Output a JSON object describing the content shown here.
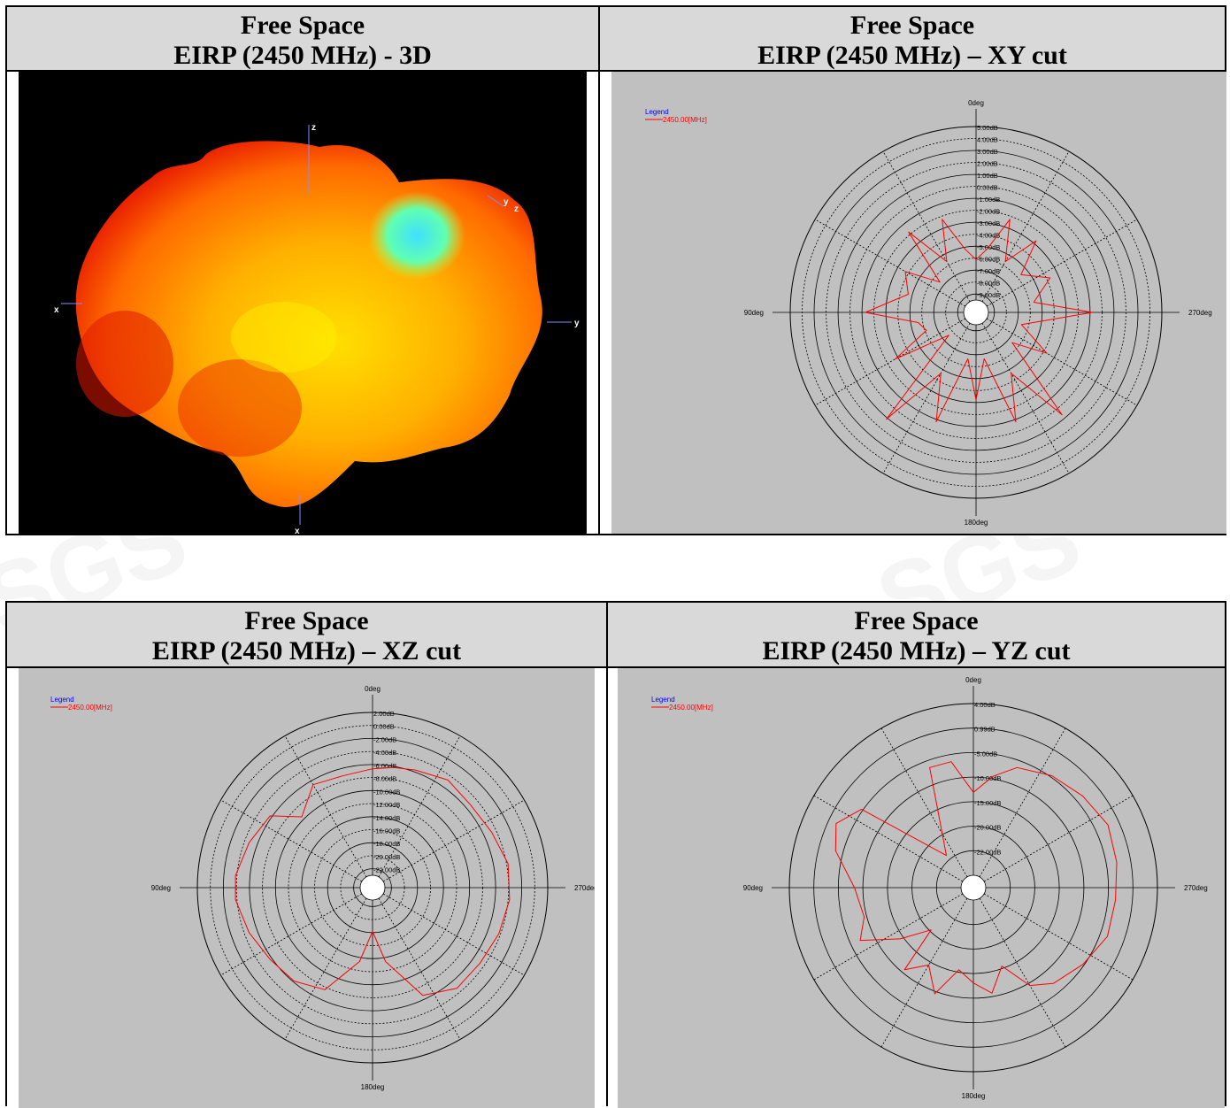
{
  "watermark": "SGS",
  "panels": [
    {
      "id": "3d",
      "title_line1": "Free Space",
      "title_line2": "EIRP (2450 MHz) - 3D",
      "axis_labels": [
        "z",
        "x",
        "y",
        "y",
        "x",
        "z"
      ]
    },
    {
      "id": "xy",
      "title_line1": "Free Space",
      "title_line2": "EIRP (2450 MHz) – XY cut"
    },
    {
      "id": "xz",
      "title_line1": "Free Space",
      "title_line2": "EIRP (2450 MHz) – XZ cut"
    },
    {
      "id": "yz",
      "title_line1": "Free Space",
      "title_line2": "EIRP (2450 MHz) – YZ cut"
    }
  ],
  "legend": {
    "title": "Legend",
    "entry": "2450.00[MHz]"
  },
  "colors": {
    "trace": "#ff0000",
    "legend_title": "#0000ff",
    "plot_bg": "#c0c0c0",
    "header_bg": "#d9d9d9"
  },
  "chart_data": [
    {
      "type": "polar",
      "panel": "xy",
      "angle_labels": {
        "top": "0deg",
        "left": "90deg",
        "bottom": "180deg",
        "right": "270deg"
      },
      "radial_labels": [
        "5.00dB",
        "4.00dB",
        "3.00dB",
        "2.00dB",
        "1.00dB",
        "0.00dB",
        "-1.00dB",
        "-2.00dB",
        "-3.00dB",
        "-4.00dB",
        "-5.00dB",
        "-6.00dB",
        "-7.00dB",
        "-8.00dB",
        "-9.00dB"
      ],
      "r_range_db": [
        -10,
        5
      ],
      "series": [
        {
          "name": "2450.00[MHz]",
          "points": [
            [
              0,
              -6.5
            ],
            [
              10,
              -5.5
            ],
            [
              20,
              -2.5
            ],
            [
              30,
              -6
            ],
            [
              40,
              -2
            ],
            [
              50,
              -7
            ],
            [
              60,
              -4
            ],
            [
              75,
              -5
            ],
            [
              90,
              -1.5
            ],
            [
              100,
              -6
            ],
            [
              110,
              -6.5
            ],
            [
              120,
              -3
            ],
            [
              130,
              -8
            ],
            [
              140,
              1
            ],
            [
              150,
              -5
            ],
            [
              160,
              -1
            ],
            [
              170,
              -7
            ],
            [
              180,
              -3.5
            ],
            [
              190,
              -7
            ],
            [
              200,
              -1
            ],
            [
              210,
              -5
            ],
            [
              220,
              0.5
            ],
            [
              230,
              -7
            ],
            [
              240,
              -4
            ],
            [
              255,
              -7
            ],
            [
              270,
              -1
            ],
            [
              280,
              -6
            ],
            [
              295,
              -4
            ],
            [
              310,
              -6
            ],
            [
              320,
              -3
            ],
            [
              330,
              -6
            ],
            [
              340,
              -2.5
            ],
            [
              350,
              -5.5
            ]
          ]
        }
      ]
    },
    {
      "type": "polar",
      "panel": "xz",
      "angle_labels": {
        "top": "0deg",
        "left": "90deg",
        "bottom": "180deg",
        "right": "270deg"
      },
      "radial_labels": [
        "2.00dB",
        "0.00dB",
        "-2.00dB",
        "-4.00dB",
        "-6.00dB",
        "-8.00dB",
        "-10.00dB",
        "-12.00dB",
        "-14.00dB",
        "-16.00dB",
        "-18.00dB",
        "-20.00dB",
        "-22.00dB"
      ],
      "r_range_db": [
        -24,
        2
      ],
      "series": [
        {
          "name": "2450.00[MHz]",
          "points": [
            [
              0,
              -7
            ],
            [
              15,
              -7.5
            ],
            [
              30,
              -7
            ],
            [
              45,
              -10
            ],
            [
              55,
              -6
            ],
            [
              70,
              -5
            ],
            [
              85,
              -4
            ],
            [
              95,
              -4
            ],
            [
              110,
              -5
            ],
            [
              125,
              -6
            ],
            [
              140,
              -6.5
            ],
            [
              155,
              -8
            ],
            [
              170,
              -14
            ],
            [
              180,
              -19
            ],
            [
              190,
              -14
            ],
            [
              205,
              -7
            ],
            [
              220,
              -5
            ],
            [
              235,
              -5
            ],
            [
              250,
              -4.5
            ],
            [
              265,
              -4
            ],
            [
              280,
              -4
            ],
            [
              295,
              -5
            ],
            [
              310,
              -5.5
            ],
            [
              325,
              -5
            ],
            [
              340,
              -6
            ],
            [
              350,
              -6.5
            ]
          ]
        }
      ]
    },
    {
      "type": "polar",
      "panel": "yz",
      "angle_labels": {
        "top": "0deg",
        "left": "90deg",
        "bottom": "180deg",
        "right": "270deg"
      },
      "radial_labels": [
        "4.00dB",
        "0.99dB",
        "-5.00dB",
        "-10.00dB",
        "-15.00dB",
        "-20.00dB",
        "-22.00dB"
      ],
      "r_range_db": [
        -25,
        4
      ],
      "series": [
        {
          "name": "2450.00[MHz]",
          "points": [
            [
              0,
              -11
            ],
            [
              10,
              -5.5
            ],
            [
              20,
              -5.5
            ],
            [
              25,
              -13
            ],
            [
              40,
              -20
            ],
            [
              55,
              -4
            ],
            [
              65,
              -1.5
            ],
            [
              75,
              -3
            ],
            [
              90,
              -7
            ],
            [
              105,
              -8
            ],
            [
              115,
              -6
            ],
            [
              125,
              -12
            ],
            [
              135,
              -17
            ],
            [
              140,
              -9
            ],
            [
              150,
              -12
            ],
            [
              160,
              -8
            ],
            [
              170,
              -13
            ],
            [
              180,
              -11
            ],
            [
              190,
              -9
            ],
            [
              200,
              -13
            ],
            [
              210,
              -8
            ],
            [
              220,
              -6
            ],
            [
              235,
              -4.5
            ],
            [
              250,
              -3
            ],
            [
              265,
              -3
            ],
            [
              280,
              -2.5
            ],
            [
              295,
              -2
            ],
            [
              310,
              -3
            ],
            [
              325,
              -4
            ],
            [
              340,
              -5.5
            ],
            [
              350,
              -8
            ]
          ]
        }
      ]
    }
  ]
}
